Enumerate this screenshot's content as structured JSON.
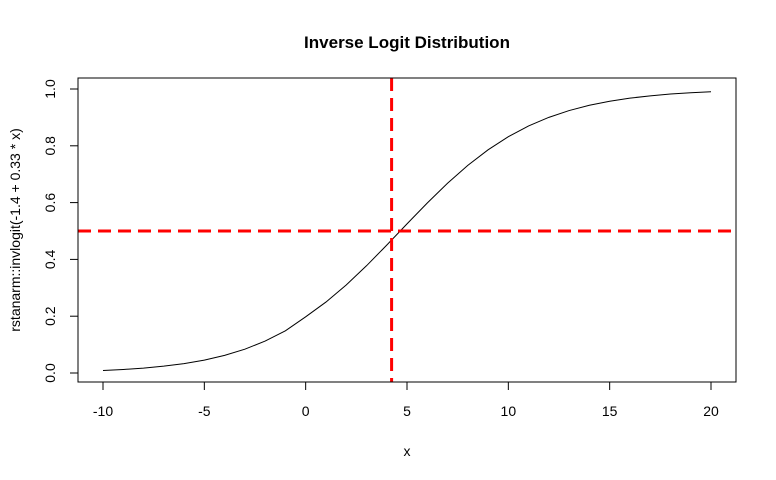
{
  "chart_data": {
    "type": "line",
    "title": "Inverse Logit Distribution",
    "xlabel": "x",
    "ylabel": "rstanarm::invlogit(-1.4 + 0.33 * x)",
    "xlim": [
      -10,
      20
    ],
    "ylim": [
      0,
      1
    ],
    "x_ticks": [
      -10,
      -5,
      0,
      5,
      10,
      15,
      20
    ],
    "x_tick_labels": [
      "-10",
      "-5",
      "0",
      "5",
      "10",
      "15",
      "20"
    ],
    "y_ticks": [
      0,
      0.2,
      0.4,
      0.6,
      0.8,
      1.0
    ],
    "y_tick_labels": [
      "0.0",
      "0.2",
      "0.4",
      "0.6",
      "0.8",
      "1.0"
    ],
    "grid": false,
    "series": [
      {
        "color": "#000000",
        "x": [
          -10,
          -9,
          -8,
          -7,
          -6,
          -5,
          -4,
          -3,
          -2,
          -1,
          0,
          1,
          2,
          3,
          4,
          5,
          6,
          7,
          8,
          9,
          10,
          11,
          12,
          13,
          14,
          15,
          16,
          17,
          18,
          19,
          20
        ],
        "y": [
          0.009,
          0.0125,
          0.0173,
          0.024,
          0.0331,
          0.0453,
          0.062,
          0.0839,
          0.1124,
          0.1487,
          0.1978,
          0.2497,
          0.31,
          0.3775,
          0.4502,
          0.525,
          0.5987,
          0.6682,
          0.7311,
          0.7858,
          0.832,
          0.8699,
          0.9002,
          0.9241,
          0.9427,
          0.9569,
          0.9678,
          0.976,
          0.9822,
          0.9868,
          0.9902
        ]
      }
    ],
    "reference_lines": [
      {
        "orientation": "vertical",
        "value": 4.24,
        "color": "#ff0000",
        "style": "dashed"
      },
      {
        "orientation": "horizontal",
        "value": 0.5,
        "color": "#ff0000",
        "style": "dashed"
      }
    ]
  }
}
